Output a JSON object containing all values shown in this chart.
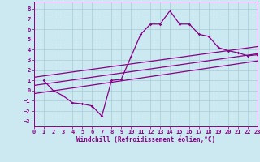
{
  "xlabel": "Windchill (Refroidissement éolien,°C)",
  "bg_color": "#cce8f0",
  "grid_color": "#a8ccd8",
  "line_color": "#880088",
  "xlim": [
    0,
    23
  ],
  "ylim": [
    -3.5,
    8.7
  ],
  "xticks": [
    0,
    1,
    2,
    3,
    4,
    5,
    6,
    7,
    8,
    9,
    10,
    11,
    12,
    13,
    14,
    15,
    16,
    17,
    18,
    19,
    20,
    21,
    22,
    23
  ],
  "yticks": [
    -3,
    -2,
    -1,
    0,
    1,
    2,
    3,
    4,
    5,
    6,
    7,
    8
  ],
  "main_x": [
    1,
    2,
    3,
    4,
    5,
    6,
    7,
    8,
    9,
    10,
    11,
    12,
    13,
    14,
    15,
    16,
    17,
    18,
    19,
    20,
    21,
    22,
    23
  ],
  "main_y": [
    1.0,
    0.0,
    -0.5,
    -1.2,
    -1.3,
    -1.5,
    -2.5,
    1.0,
    1.1,
    3.3,
    5.5,
    6.5,
    6.5,
    7.8,
    6.5,
    6.5,
    5.5,
    5.3,
    4.2,
    3.9,
    3.7,
    3.4,
    3.5
  ],
  "upper_line_x": [
    0,
    23
  ],
  "upper_line_y": [
    1.3,
    4.3
  ],
  "mid_line_x": [
    0,
    23
  ],
  "mid_line_y": [
    0.5,
    3.6
  ],
  "lower_line_x": [
    0,
    23
  ],
  "lower_line_y": [
    -0.3,
    2.9
  ],
  "label_fontsize": 5.5,
  "tick_fontsize": 5.0
}
